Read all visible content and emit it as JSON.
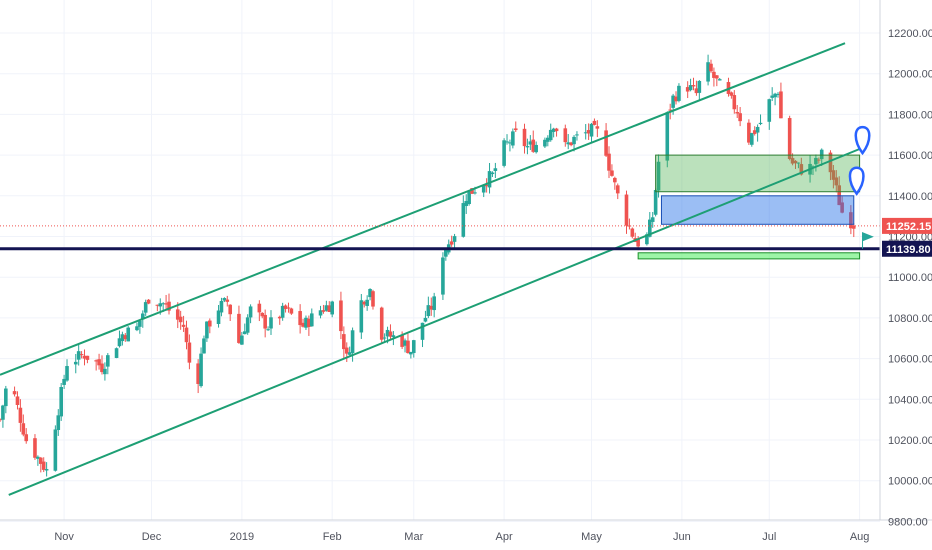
{
  "chart_data": {
    "type": "candlestick",
    "title": "",
    "xlabel": "",
    "ylabel": "",
    "ylim": [
      9800,
      12280
    ],
    "x_range": [
      "2018-10-10",
      "2019-08-08"
    ],
    "grid": true,
    "y_ticks": [
      12200,
      12000,
      11800,
      11600,
      11400,
      11200,
      11000,
      10800,
      10600,
      10400,
      10200,
      10000,
      9800
    ],
    "y_tick_labels": [
      "12200.00",
      "12000.00",
      "11800.00",
      "11600.00",
      "11400.00",
      "11200.00",
      "11000.00",
      "10800.00",
      "10600.00",
      "10400.00",
      "10200.00",
      "10000.00",
      "9800.00"
    ],
    "x_ticks": [
      {
        "date": "2018-11-01",
        "label": "Nov"
      },
      {
        "date": "2018-12-01",
        "label": "Dec"
      },
      {
        "date": "2019-01-01",
        "label": "2019"
      },
      {
        "date": "2019-02-01",
        "label": "Feb"
      },
      {
        "date": "2019-03-01",
        "label": "Mar"
      },
      {
        "date": "2019-04-01",
        "label": "Apr"
      },
      {
        "date": "2019-05-01",
        "label": "May"
      },
      {
        "date": "2019-06-01",
        "label": "Jun"
      },
      {
        "date": "2019-07-01",
        "label": "Jul"
      },
      {
        "date": "2019-08-01",
        "label": "Aug"
      }
    ],
    "price_anchors": [
      [
        "2018-10-10",
        10300
      ],
      [
        "2018-10-13",
        10520
      ],
      [
        "2018-10-19",
        10200
      ],
      [
        "2018-10-26",
        10050
      ],
      [
        "2018-11-02",
        10580
      ],
      [
        "2018-11-08",
        10620
      ],
      [
        "2018-11-14",
        10560
      ],
      [
        "2018-11-21",
        10720
      ],
      [
        "2018-11-26",
        10750
      ],
      [
        "2018-11-30",
        10900
      ],
      [
        "2018-12-05",
        10870
      ],
      [
        "2018-12-12",
        10760
      ],
      [
        "2018-12-16",
        10400
      ],
      [
        "2018-12-19",
        10720
      ],
      [
        "2018-12-23",
        10840
      ],
      [
        "2018-12-27",
        10880
      ],
      [
        "2018-12-31",
        10680
      ],
      [
        "2019-01-04",
        10840
      ],
      [
        "2019-01-10",
        10760
      ],
      [
        "2019-01-16",
        10840
      ],
      [
        "2019-01-22",
        10760
      ],
      [
        "2019-01-28",
        10840
      ],
      [
        "2019-02-02",
        10880
      ],
      [
        "2019-02-06",
        10600
      ],
      [
        "2019-02-10",
        10860
      ],
      [
        "2019-02-14",
        10940
      ],
      [
        "2019-02-18",
        10720
      ],
      [
        "2019-02-24",
        10700
      ],
      [
        "2019-02-28",
        10640
      ],
      [
        "2019-03-04",
        10780
      ],
      [
        "2019-03-08",
        10880
      ],
      [
        "2019-03-11",
        11120
      ],
      [
        "2019-03-15",
        11220
      ],
      [
        "2019-03-19",
        11400
      ],
      [
        "2019-03-24",
        11460
      ],
      [
        "2019-03-28",
        11500
      ],
      [
        "2019-04-01",
        11640
      ],
      [
        "2019-04-05",
        11700
      ],
      [
        "2019-04-09",
        11640
      ],
      [
        "2019-04-14",
        11660
      ],
      [
        "2019-04-18",
        11760
      ],
      [
        "2019-04-22",
        11640
      ],
      [
        "2019-04-25",
        11680
      ],
      [
        "2019-04-28",
        11700
      ],
      [
        "2019-05-01",
        11720
      ],
      [
        "2019-05-05",
        11700
      ],
      [
        "2019-05-07",
        11550
      ],
      [
        "2019-05-10",
        11400
      ],
      [
        "2019-05-13",
        11280
      ],
      [
        "2019-05-16",
        11180
      ],
      [
        "2019-05-19",
        11150
      ],
      [
        "2019-05-22",
        11300
      ],
      [
        "2019-05-25",
        11700
      ],
      [
        "2019-05-29",
        11880
      ],
      [
        "2019-06-02",
        11950
      ],
      [
        "2019-06-06",
        11900
      ],
      [
        "2019-06-09",
        12050
      ],
      [
        "2019-06-12",
        11980
      ],
      [
        "2019-06-16",
        11900
      ],
      [
        "2019-06-20",
        11820
      ],
      [
        "2019-06-24",
        11680
      ],
      [
        "2019-06-28",
        11760
      ],
      [
        "2019-07-01",
        11860
      ],
      [
        "2019-07-04",
        11920
      ],
      [
        "2019-07-06",
        11640
      ],
      [
        "2019-07-09",
        11560
      ],
      [
        "2019-07-13",
        11520
      ],
      [
        "2019-07-17",
        11560
      ],
      [
        "2019-07-20",
        11620
      ],
      [
        "2019-07-23",
        11480
      ],
      [
        "2019-07-26",
        11320
      ],
      [
        "2019-07-30",
        11260
      ]
    ],
    "annotations": {
      "channel_upper": {
        "start": [
          "2018-10-10",
          10520
        ],
        "end": [
          "2019-07-27",
          12150
        ]
      },
      "channel_lower": {
        "start": [
          "2018-10-13",
          9930
        ],
        "end": [
          "2019-08-01",
          11630
        ]
      },
      "zone_green": {
        "from": "2019-05-23",
        "to": "2019-08-01",
        "top": 11600,
        "bottom": 11420
      },
      "zone_blue": {
        "from": "2019-05-25",
        "to": "2019-07-30",
        "top": 11400,
        "bottom": 11260
      },
      "zone_support": {
        "from": "2019-05-17",
        "to": "2019-08-01",
        "top": 11120,
        "bottom": 11090
      },
      "support_line": {
        "value": 11139.8
      },
      "current_price_line": {
        "value": 11252.15
      }
    },
    "price_labels": [
      {
        "value": 11252.15,
        "label": "11252.15",
        "color": "#ef5350"
      },
      {
        "value": 11139.8,
        "label": "11139.80",
        "color": "#131452"
      }
    ]
  },
  "colors": {
    "up": "#26a69a",
    "down": "#ef5350",
    "grid": "#f0f3fa",
    "channel": "#1d9f74",
    "zone_green_fill": "rgba(76,175,80,0.38)",
    "zone_blue_fill": "rgba(33,110,230,0.45)",
    "zone_support_fill": "rgba(105,240,120,0.65)",
    "support_line": "#131452",
    "marker": "#2962ff"
  }
}
